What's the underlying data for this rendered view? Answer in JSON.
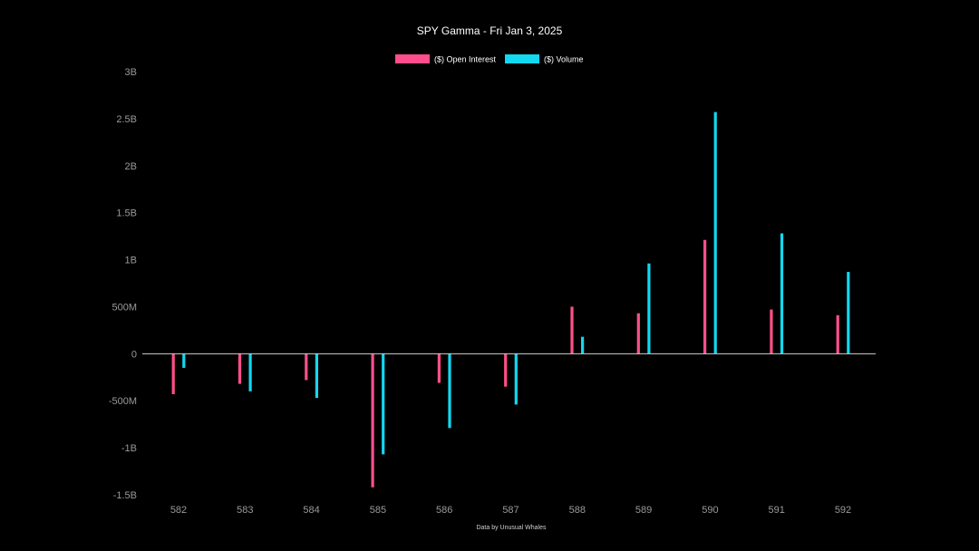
{
  "chart_data": {
    "type": "bar",
    "title": "SPY Gamma - Fri Jan 3, 2025",
    "categories": [
      "582",
      "583",
      "584",
      "585",
      "586",
      "587",
      "588",
      "589",
      "590",
      "591",
      "592"
    ],
    "series": [
      {
        "name": "($) Open Interest",
        "color": "#ff4f8b",
        "values": [
          -430000000,
          -320000000,
          -280000000,
          -1420000000,
          -310000000,
          -350000000,
          500000000,
          430000000,
          1210000000,
          470000000,
          410000000
        ]
      },
      {
        "name": "($) Volume",
        "color": "#12d8f0",
        "values": [
          -150000000,
          -400000000,
          -470000000,
          -1070000000,
          -790000000,
          -540000000,
          180000000,
          960000000,
          2570000000,
          1280000000,
          870000000
        ]
      }
    ],
    "ylim": [
      -1500000000,
      3000000000
    ],
    "yticks": [
      {
        "value": 3000000000,
        "label": "3B"
      },
      {
        "value": 2500000000,
        "label": "2.5B"
      },
      {
        "value": 2000000000,
        "label": "2B"
      },
      {
        "value": 1500000000,
        "label": "1.5B"
      },
      {
        "value": 1000000000,
        "label": "1B"
      },
      {
        "value": 500000000,
        "label": "500M"
      },
      {
        "value": 0,
        "label": "0"
      },
      {
        "value": -500000000,
        "label": "-500M"
      },
      {
        "value": -1000000000,
        "label": "-1B"
      },
      {
        "value": -1500000000,
        "label": "-1.5B"
      }
    ],
    "grid": false,
    "legend_position": "top-center",
    "footer": "Data by Unusual Whales"
  }
}
